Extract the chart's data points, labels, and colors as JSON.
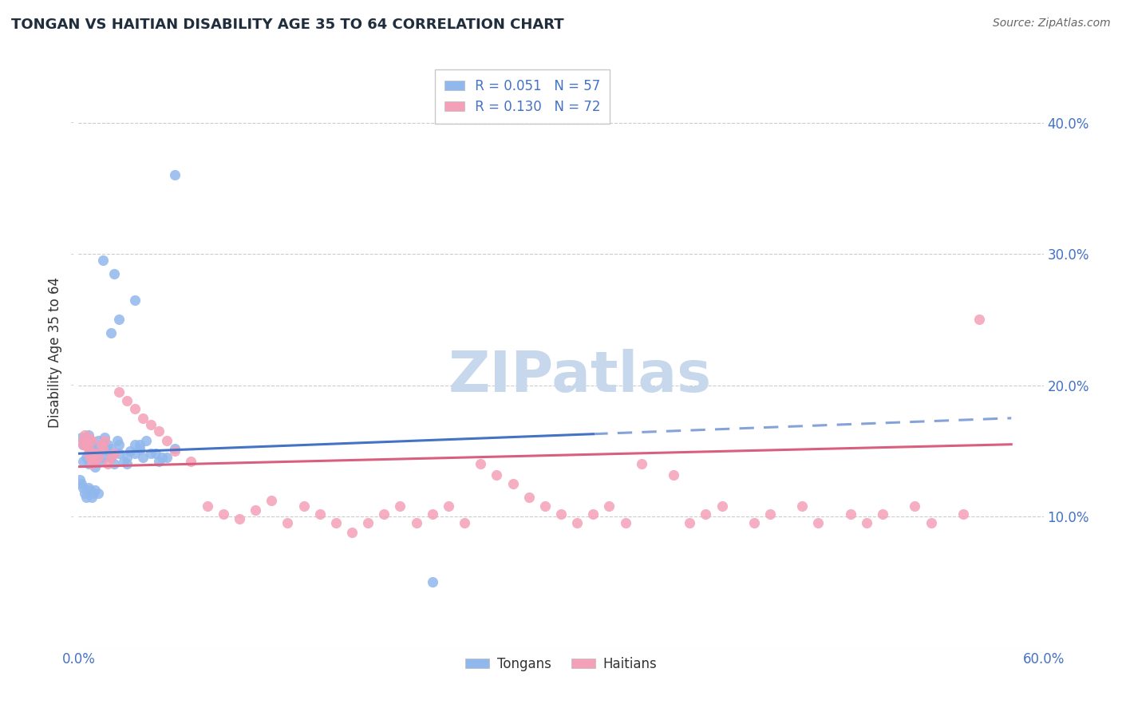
{
  "title": "TONGAN VS HAITIAN DISABILITY AGE 35 TO 64 CORRELATION CHART",
  "source": "Source: ZipAtlas.com",
  "ylabel": "Disability Age 35 to 64",
  "xlim": [
    0.0,
    0.6
  ],
  "ylim": [
    0.0,
    0.45
  ],
  "xticks": [
    0.0,
    0.1,
    0.2,
    0.3,
    0.4,
    0.5,
    0.6
  ],
  "yticks": [
    0.0,
    0.1,
    0.2,
    0.3,
    0.4
  ],
  "xticklabels": [
    "0.0%",
    "",
    "",
    "",
    "",
    "",
    "60.0%"
  ],
  "yticklabels": [
    "",
    "10.0%",
    "20.0%",
    "30.0%",
    "40.0%"
  ],
  "legend_r_tongan": "R = 0.051",
  "legend_n_tongan": "N = 57",
  "legend_r_haitian": "R = 0.130",
  "legend_n_haitian": "N = 72",
  "tongan_color": "#91b8ed",
  "haitian_color": "#f4a0b8",
  "tongan_line_color": "#4472c4",
  "haitian_line_color": "#d95f7f",
  "watermark_color": "#c8d8ec",
  "background_color": "#ffffff",
  "grid_color": "#cccccc",
  "tick_color": "#4472c4",
  "title_color": "#1f2d3d",
  "source_color": "#666666",
  "ylabel_color": "#333333",
  "tongan_x": [
    0.003,
    0.005,
    0.008,
    0.002,
    0.006,
    0.004,
    0.007,
    0.003,
    0.009,
    0.005,
    0.01,
    0.008,
    0.012,
    0.006,
    0.01,
    0.008,
    0.015,
    0.012,
    0.014,
    0.01,
    0.018,
    0.015,
    0.02,
    0.016,
    0.022,
    0.018,
    0.025,
    0.02,
    0.028,
    0.024,
    0.03,
    0.025,
    0.035,
    0.03,
    0.038,
    0.032,
    0.04,
    0.035,
    0.045,
    0.038,
    0.05,
    0.042,
    0.055,
    0.048,
    0.06,
    0.052,
    0.002,
    0.004,
    0.006,
    0.008,
    0.01,
    0.012,
    0.001,
    0.003,
    0.005,
    0.007,
    0.009
  ],
  "tongan_y": [
    0.155,
    0.145,
    0.15,
    0.16,
    0.14,
    0.155,
    0.148,
    0.142,
    0.152,
    0.158,
    0.145,
    0.155,
    0.148,
    0.162,
    0.138,
    0.152,
    0.145,
    0.158,
    0.142,
    0.148,
    0.15,
    0.155,
    0.145,
    0.16,
    0.14,
    0.155,
    0.148,
    0.152,
    0.142,
    0.158,
    0.145,
    0.155,
    0.148,
    0.14,
    0.155,
    0.15,
    0.145,
    0.155,
    0.148,
    0.152,
    0.142,
    0.158,
    0.145,
    0.148,
    0.152,
    0.145,
    0.125,
    0.118,
    0.122,
    0.115,
    0.12,
    0.118,
    0.128,
    0.122,
    0.115,
    0.12,
    0.118
  ],
  "tongan_outliers_x": [
    0.06,
    0.015,
    0.022,
    0.035,
    0.025,
    0.02,
    0.22
  ],
  "tongan_outliers_y": [
    0.36,
    0.295,
    0.285,
    0.265,
    0.25,
    0.24,
    0.05
  ],
  "haitian_x": [
    0.003,
    0.006,
    0.004,
    0.008,
    0.005,
    0.007,
    0.003,
    0.009,
    0.006,
    0.01,
    0.008,
    0.012,
    0.006,
    0.01,
    0.014,
    0.018,
    0.015,
    0.02,
    0.016,
    0.022,
    0.025,
    0.03,
    0.035,
    0.04,
    0.045,
    0.05,
    0.055,
    0.06,
    0.07,
    0.08,
    0.09,
    0.1,
    0.11,
    0.12,
    0.13,
    0.14,
    0.15,
    0.16,
    0.17,
    0.18,
    0.19,
    0.2,
    0.21,
    0.22,
    0.23,
    0.24,
    0.25,
    0.26,
    0.27,
    0.28,
    0.29,
    0.3,
    0.31,
    0.32,
    0.33,
    0.34,
    0.35,
    0.37,
    0.38,
    0.39,
    0.4,
    0.42,
    0.43,
    0.45,
    0.46,
    0.48,
    0.49,
    0.5,
    0.52,
    0.53,
    0.55,
    0.56
  ],
  "haitian_y": [
    0.155,
    0.148,
    0.162,
    0.14,
    0.155,
    0.145,
    0.158,
    0.148,
    0.152,
    0.142,
    0.158,
    0.145,
    0.16,
    0.148,
    0.155,
    0.14,
    0.152,
    0.145,
    0.158,
    0.148,
    0.195,
    0.188,
    0.182,
    0.175,
    0.17,
    0.165,
    0.158,
    0.15,
    0.142,
    0.108,
    0.102,
    0.098,
    0.105,
    0.112,
    0.095,
    0.108,
    0.102,
    0.095,
    0.088,
    0.095,
    0.102,
    0.108,
    0.095,
    0.102,
    0.108,
    0.095,
    0.14,
    0.132,
    0.125,
    0.115,
    0.108,
    0.102,
    0.095,
    0.102,
    0.108,
    0.095,
    0.14,
    0.132,
    0.095,
    0.102,
    0.108,
    0.095,
    0.102,
    0.108,
    0.095,
    0.102,
    0.095,
    0.102,
    0.108,
    0.095,
    0.102,
    0.25
  ],
  "tongan_line": {
    "x0": 0.0,
    "x1": 0.58,
    "y0": 0.148,
    "y1": 0.175,
    "solid_end": 0.32
  },
  "haitian_line": {
    "x0": 0.0,
    "x1": 0.58,
    "y0": 0.138,
    "y1": 0.155
  }
}
